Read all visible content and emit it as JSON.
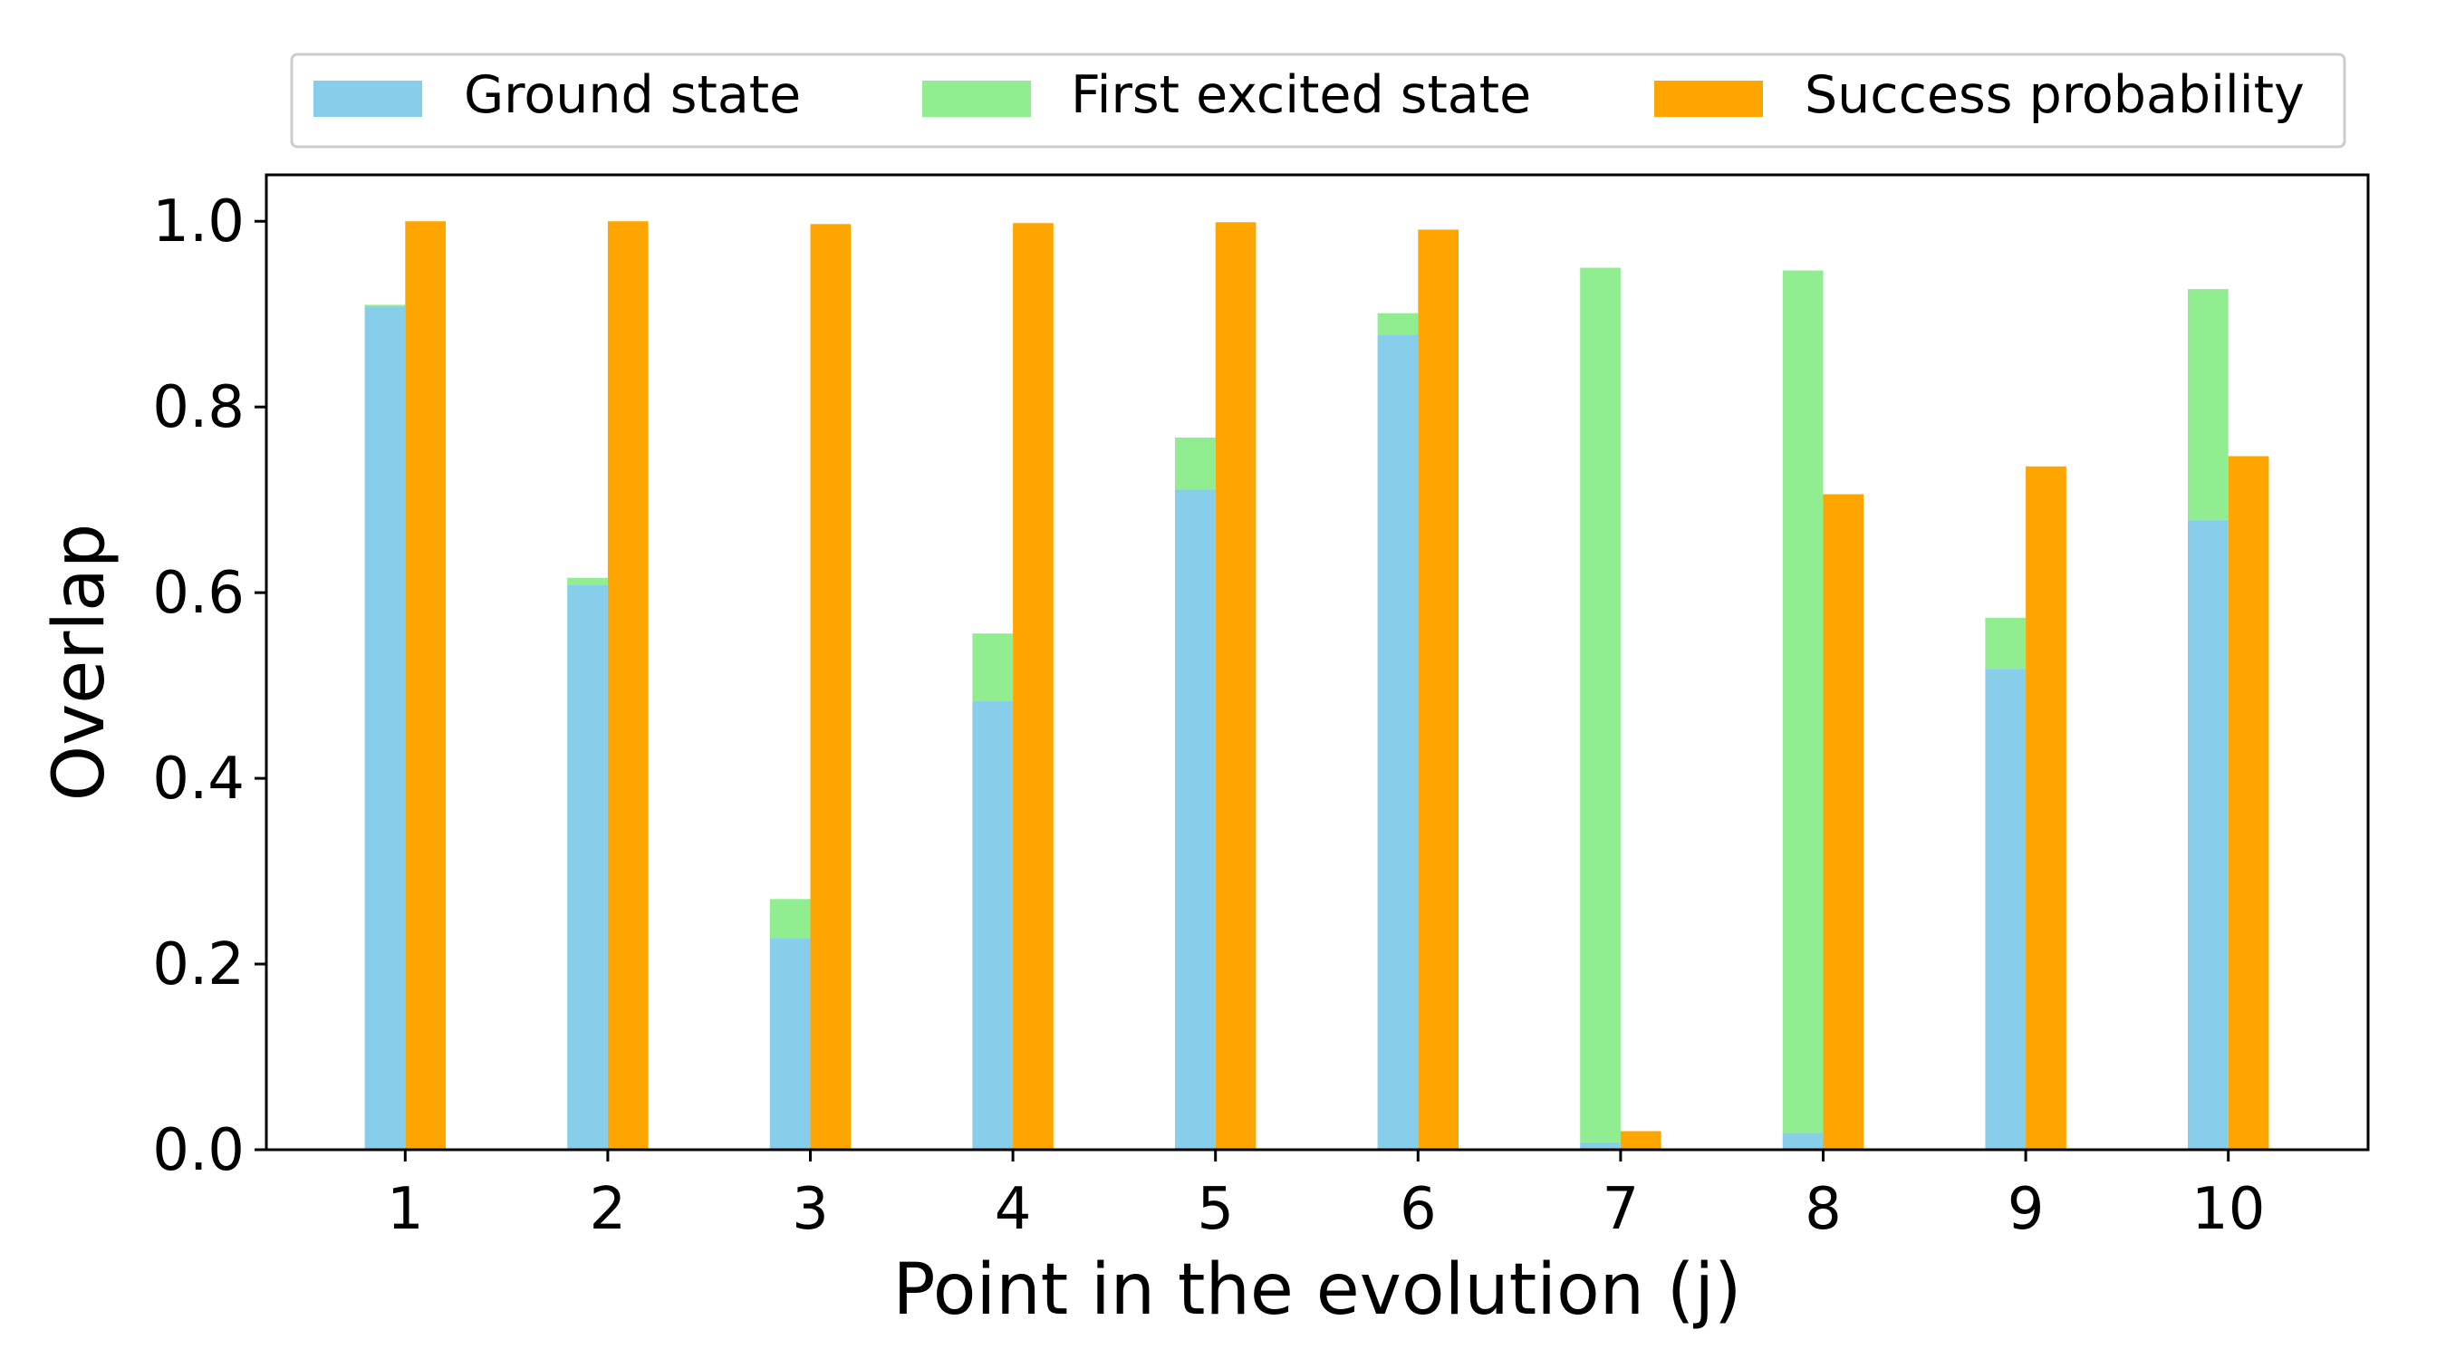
{
  "chart_data": {
    "type": "bar",
    "stacked_series": [
      "Ground state",
      "First excited state"
    ],
    "categories": [
      "1",
      "2",
      "3",
      "4",
      "5",
      "6",
      "7",
      "8",
      "9",
      "10"
    ],
    "series": [
      {
        "name": "Ground state",
        "color": "#87CEEB",
        "values": [
          0.908,
          0.608,
          0.228,
          0.483,
          0.711,
          0.878,
          0.008,
          0.018,
          0.518,
          0.678
        ]
      },
      {
        "name": "First excited state",
        "color": "#90EE90",
        "values": [
          0.002,
          0.008,
          0.042,
          0.073,
          0.056,
          0.023,
          0.942,
          0.929,
          0.055,
          0.249
        ]
      },
      {
        "name": "Success probability",
        "color": "#FFA500",
        "values": [
          1.0,
          1.0,
          0.997,
          0.998,
          0.999,
          0.991,
          0.02,
          0.706,
          0.736,
          0.747
        ]
      }
    ],
    "xlabel": "Point in the evolution (j)",
    "ylabel": "Overlap",
    "ylim": [
      0,
      1.05
    ],
    "yticks": [
      "0.0",
      "0.2",
      "0.4",
      "0.6",
      "0.8",
      "1.0"
    ],
    "legend": "top-center, outside plot, three columns",
    "grid": false
  }
}
